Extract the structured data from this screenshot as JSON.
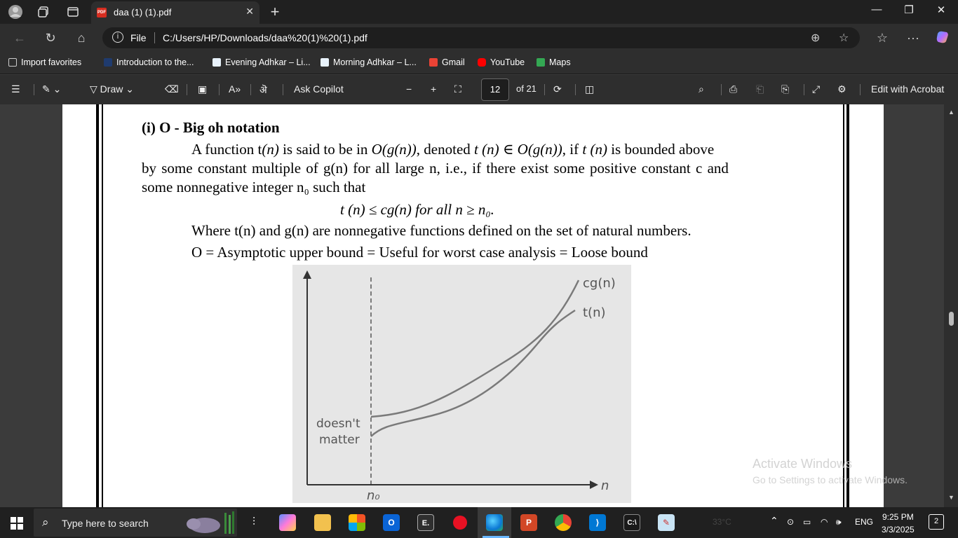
{
  "browser": {
    "tab_title": "daa (1) (1).pdf",
    "tab_badge": "PDF",
    "new_tab": "+",
    "address": {
      "scheme_label": "File",
      "url": "C:/Users/HP/Downloads/daa%20(1)%20(1).pdf"
    },
    "bookmarks": [
      {
        "label": "Import favorites",
        "color": "#cccccc"
      },
      {
        "label": "Introduction to the...",
        "color": "#1f3b6e"
      },
      {
        "label": "Evening Adhkar – Li...",
        "color": "#e8f2fb"
      },
      {
        "label": "Morning Adhkar – L...",
        "color": "#e8f2fb"
      },
      {
        "label": "Gmail",
        "color": "#ea4335"
      },
      {
        "label": "YouTube",
        "color": "#ff0000"
      },
      {
        "label": "Maps",
        "color": "#34a853"
      }
    ]
  },
  "pdf_toolbar": {
    "draw_label": "Draw",
    "ask_copilot": "Ask Copilot",
    "page_number": "12",
    "page_total": "of 21",
    "edit_acrobat": "Edit with Acrobat"
  },
  "document": {
    "heading": "(i) O - Big oh notation",
    "line1a": "A function t",
    "line1b": "(n)",
    "line1c": " is said to be in ",
    "line1d": "O(g(n))",
    "line1e": ", denoted ",
    "line1f": "t (n) ∈ O(g(n))",
    "line1g": ", if ",
    "line1h": "t (n)",
    "line1i": " is bounded above",
    "line2": "by some constant multiple of g(n) for all large n, i.e., if there exist some positive constant c and",
    "line3": "some nonnegative integer n₀ such that",
    "formula": "t (n) ≤ cg(n) for all n ≥ n₀.",
    "line4": "Where t(n) and g(n) are nonnegative functions defined on the set of natural numbers.",
    "line5": "O = Asymptotic upper bound = Useful for worst case analysis = Loose bound",
    "figure": {
      "label_cg": "cg(n)",
      "label_t": "t(n)",
      "label_doesnt_1": "doesn't",
      "label_doesnt_2": "matter",
      "label_n0": "n₀",
      "label_n": "n"
    }
  },
  "watermark": {
    "title": "Activate Windows",
    "subtitle": "Go to Settings to activate Windows."
  },
  "taskbar": {
    "search_placeholder": "Type here to search",
    "weather": "33°C",
    "language": "ENG",
    "time": "9:25 PM",
    "date": "3/3/2025",
    "notifications": "2"
  }
}
